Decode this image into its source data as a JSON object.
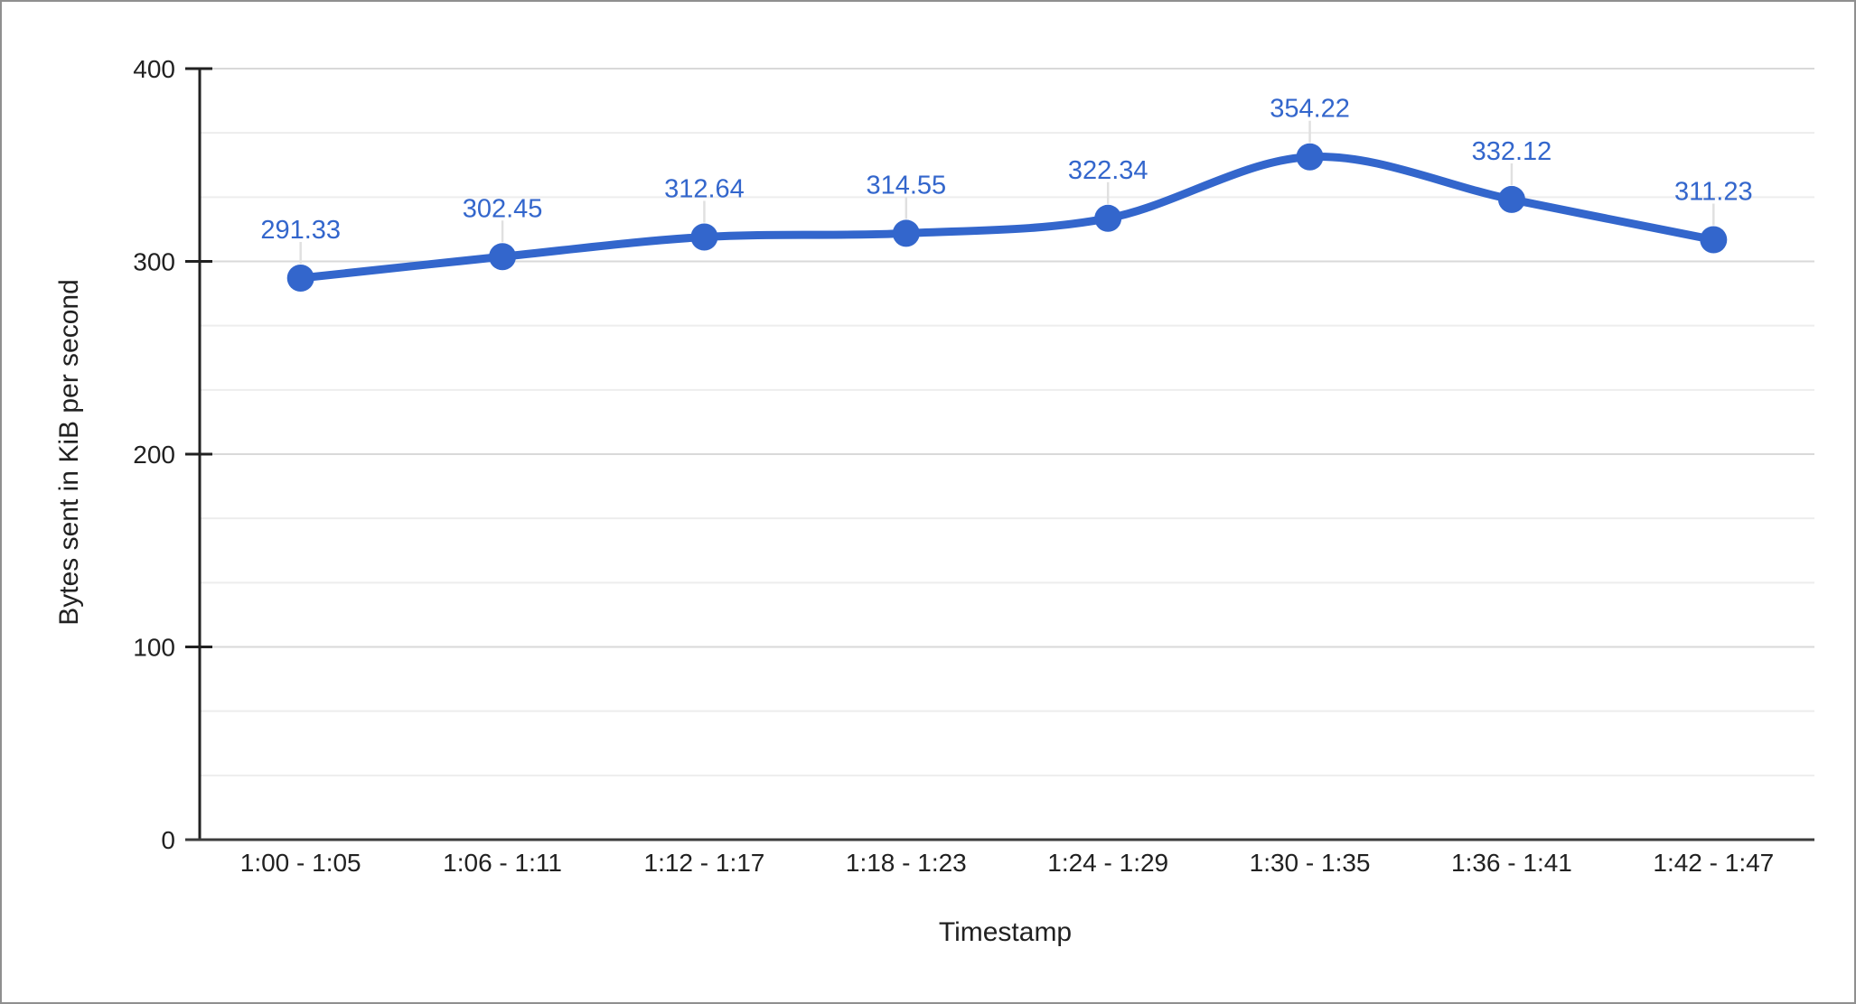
{
  "chart_data": {
    "type": "line",
    "smooth": true,
    "title": "",
    "xlabel": "Timestamp",
    "ylabel": "Bytes sent in KiB per second",
    "categories": [
      "1:00 - 1:05",
      "1:06 - 1:11",
      "1:12 - 1:17",
      "1:18 - 1:23",
      "1:24 - 1:29",
      "1:30 - 1:35",
      "1:36 - 1:41",
      "1:42 - 1:47"
    ],
    "series": [
      {
        "values": [
          291.33,
          302.45,
          312.64,
          314.55,
          322.34,
          354.22,
          332.12,
          311.23
        ],
        "point_labels": [
          "291.33",
          "302.45",
          "312.64",
          "314.55",
          "322.34",
          "354.22",
          "332.12",
          "311.23"
        ],
        "color": "#3366CC"
      }
    ],
    "ylim": [
      0,
      400
    ],
    "yticks": [
      0,
      100,
      200,
      300,
      400
    ],
    "ytick_labels": [
      "0",
      "100",
      "200",
      "300",
      "400"
    ],
    "minor_gridlines_per_interval": 2,
    "grid": true,
    "legend": "none",
    "point_markers": true,
    "data_labels_visible": true,
    "colors": {
      "series": "#3366CC",
      "data_label": "#3366CC",
      "grid_major": "#d9d9d9",
      "grid_minor": "#ededed",
      "y_axis_line": "#212121",
      "x_axis_line": "#3c3c3c",
      "tick_text": "#212121",
      "axis_title_text": "#212121",
      "label_connector": "#e0e0e0",
      "frame_border": "#8f8f8f",
      "background": "#ffffff"
    }
  }
}
